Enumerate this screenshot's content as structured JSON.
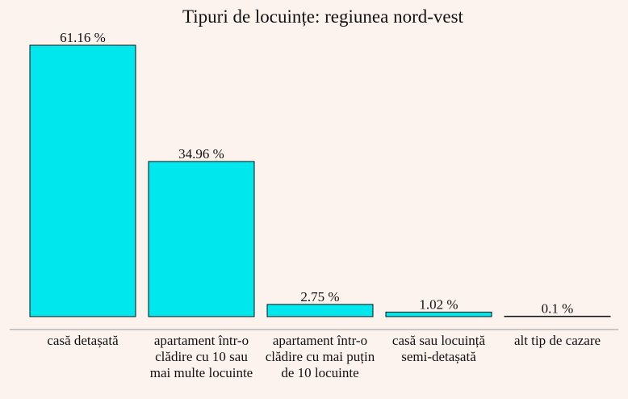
{
  "chart_data": {
    "type": "bar",
    "title": "Tipuri de locuințe: regiunea nord-vest",
    "categories": [
      "casă detașată",
      "apartament într-o clădire cu 10 sau mai multe locuinte",
      "apartament într-o clădire cu mai puțin de 10 locuinte",
      "casă sau locuință semi-detașată",
      "alt tip de cazare"
    ],
    "values": [
      61.16,
      34.96,
      2.75,
      1.02,
      0.1
    ],
    "value_labels": [
      "61.16 %",
      "34.96 %",
      "2.75 %",
      "1.02 %",
      "0.1 %"
    ],
    "color": "#00e8ee"
  }
}
